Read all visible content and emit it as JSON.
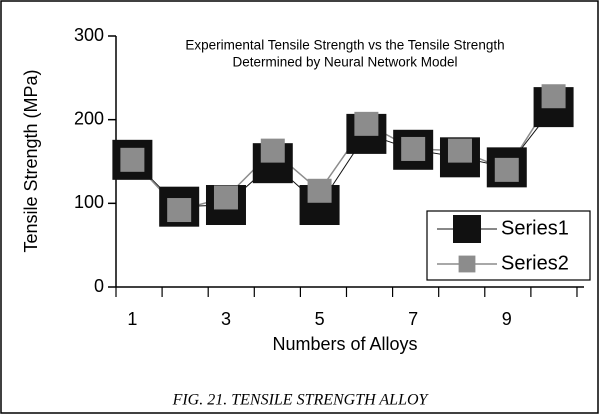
{
  "chart_data": {
    "type": "line",
    "title": [
      "Experimental Tensile Strength vs the  Tensile Strength",
      "Determined by Neural Network Model"
    ],
    "x_label": "Numbers of Alloys",
    "y_label": "Tensile Strength (MPa)",
    "caption": "FIG. 21. TENSILE STRENGTH ALLOY",
    "categories": [
      "1",
      null,
      "3",
      null,
      "5",
      null,
      "7",
      null,
      "9",
      null
    ],
    "series": [
      {
        "name": "Series1",
        "color": "#111111",
        "values": [
          152,
          96,
          98,
          148,
          98,
          183,
          164,
          155,
          143,
          215
        ]
      },
      {
        "name": "Series2",
        "color": "#8c8c8c",
        "values": [
          152,
          92,
          107,
          163,
          115,
          195,
          165,
          163,
          140,
          228
        ]
      }
    ],
    "ylim": [
      0,
      300
    ],
    "yticks": [
      0,
      100,
      200,
      300
    ],
    "legend": "lower right"
  }
}
